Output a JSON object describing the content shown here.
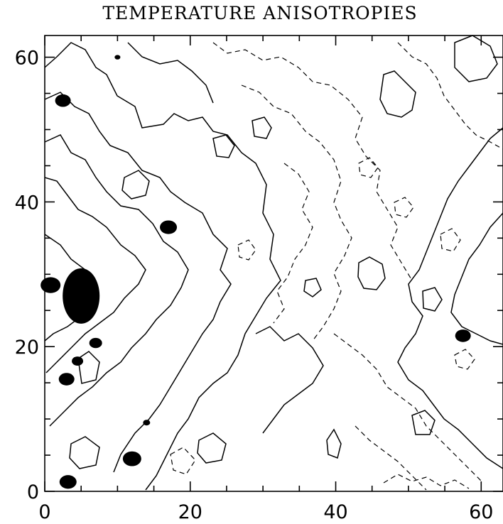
{
  "chart_data": {
    "type": "contour",
    "title": "TEMPERATURE ANISOTROPIES",
    "xlabel": "",
    "ylabel": "",
    "xlim": [
      0,
      63
    ],
    "ylim": [
      0,
      63
    ],
    "x_ticks": [
      0,
      20,
      40,
      60
    ],
    "y_ticks": [
      0,
      20,
      40,
      60
    ],
    "x_tick_labels": [
      "0",
      "20",
      "40",
      "60"
    ],
    "y_tick_labels": [
      "0",
      "20",
      "40",
      "60"
    ],
    "contour_styles": {
      "positive": "solid",
      "negative": "dashed",
      "hottest": "filled black"
    },
    "filled_regions": [
      {
        "x": 2.5,
        "y": 54
      },
      {
        "x": 17,
        "y": 36.5
      },
      {
        "x": 5,
        "y": 27
      },
      {
        "x": 0.8,
        "y": 28.5
      },
      {
        "x": 7,
        "y": 20.5
      },
      {
        "x": 4.5,
        "y": 18
      },
      {
        "x": 3,
        "y": 15.5
      },
      {
        "x": 12,
        "y": 4.5
      },
      {
        "x": 14,
        "y": 9.5
      },
      {
        "x": 3.2,
        "y": 1.3
      },
      {
        "x": 57.5,
        "y": 21.5
      },
      {
        "x": 10,
        "y": 60
      }
    ]
  }
}
